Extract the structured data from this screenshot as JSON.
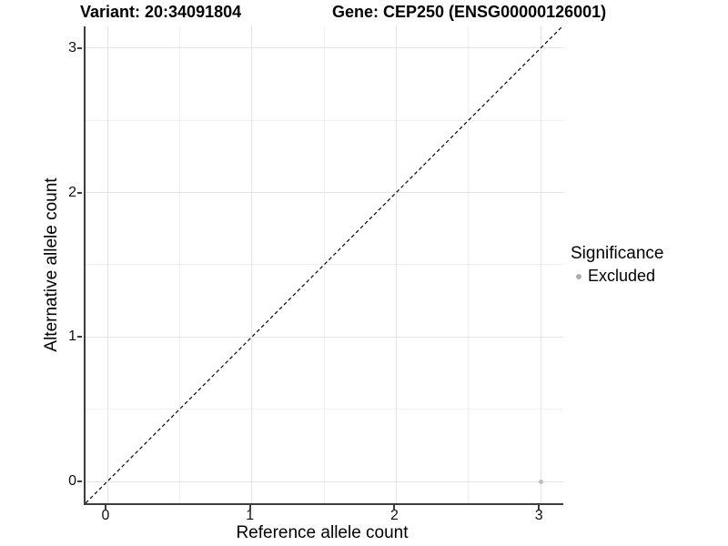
{
  "title": {
    "variant": "Variant: 20:34091804",
    "gene": "Gene: CEP250 (ENSG00000126001)"
  },
  "chart_data": {
    "type": "scatter",
    "xlabel": "Reference allele count",
    "ylabel": "Alternative allele count",
    "x_ticks": [
      0,
      1,
      2,
      3
    ],
    "y_ticks": [
      0,
      1,
      2,
      3
    ],
    "x_minor": [
      0.5,
      1.5,
      2.5
    ],
    "y_minor": [
      0.5,
      1.5,
      2.5
    ],
    "xlim": [
      -0.15,
      3.15
    ],
    "ylim": [
      -0.15,
      3.15
    ],
    "grid": true,
    "points": [
      {
        "x": 3,
        "y": 0,
        "series": "Excluded"
      }
    ],
    "reference_line": {
      "slope": 1,
      "intercept": 0,
      "style": "dashed",
      "color": "#000000"
    },
    "legend": {
      "title": "Significance",
      "position": "right",
      "entries": [
        {
          "label": "Excluded",
          "color": "#bebebe"
        }
      ]
    }
  },
  "colors": {
    "background": "#ffffff",
    "point": "#bebebe",
    "legend_dot": "#ababab",
    "grid_major": "#e4e4e4",
    "grid_minor": "#f0f0f0",
    "axis_line": "#3d3d3d",
    "text": "#000000"
  }
}
